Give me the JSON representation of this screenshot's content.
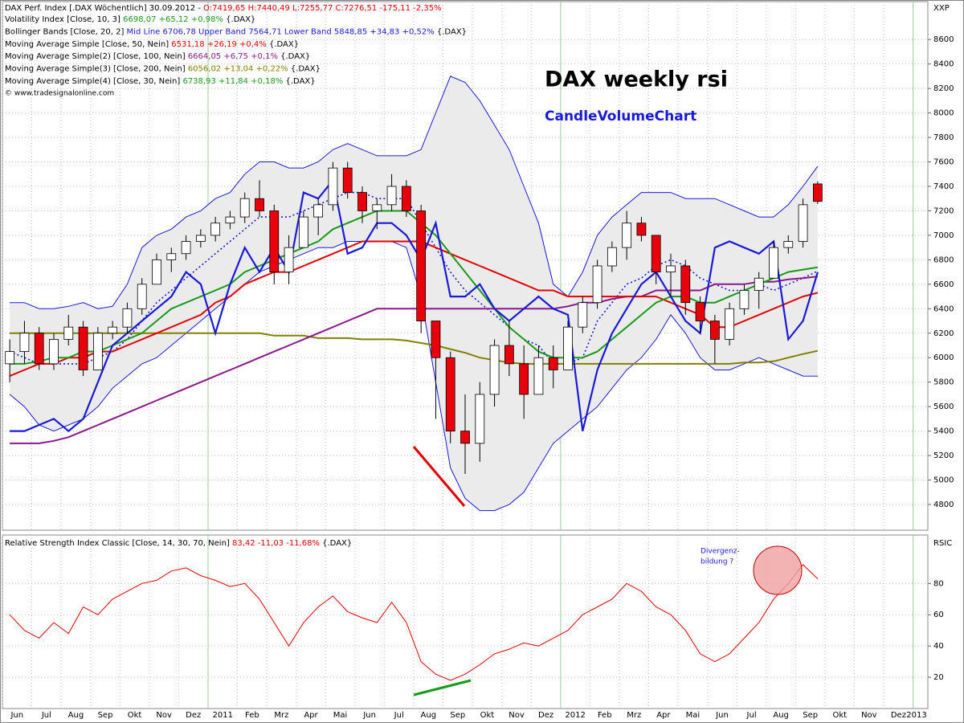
{
  "chart_data": [
    {
      "type": "candlestick",
      "header": "DAX Perf. Index [.DAX  Wöchentlich] 30.09.2012 - ",
      "header_values": "O:7419,65 H:7440,49 L:7255,77 C:7276,51 -175,11 -2,35%",
      "header_color": "#e00000",
      "copyright": "© www.tradesignalonline.com",
      "axis_name": "XXP",
      "title": "DAX weekly rsi",
      "subtitle": "CandleVolumeChart",
      "legend": [
        {
          "label": "Volatility Index [Close, 10, 3] ",
          "values": "6698,07 +65,12 +0,98% ",
          "suffix": "{.DAX}",
          "color": "#1a9a1a"
        },
        {
          "label": "Bollinger Bands [Close, 20, 2] ",
          "values": "Mid Line 6706,78 Upper Band 7564,71 Lower Band 5848,85 +34,83 +0,52% ",
          "suffix": "{.DAX}",
          "color": "#1a1ad6"
        },
        {
          "label": "Moving Average Simple [Close, 50, Nein] ",
          "values": "6531,18 +26,19 +0,4% ",
          "suffix": "{.DAX}",
          "color": "#e00000"
        },
        {
          "label": "Moving Average Simple(2) [Close, 100, Nein] ",
          "values": "6664,05 +6,75 +0,1% ",
          "suffix": "{.DAX}",
          "color": "#8a1a8a"
        },
        {
          "label": "Moving Average Simple(3) [Close, 200, Nein] ",
          "values": "6056,02 +13,04 +0,22% ",
          "suffix": "{.DAX}",
          "color": "#808000"
        },
        {
          "label": "Moving Average Simple(4) [Close, 30, Nein] ",
          "values": "6738,93 +11,84 +0,18% ",
          "suffix": "{.DAX}",
          "color": "#1a9a1a"
        }
      ],
      "categories": [
        "Jun",
        null,
        "Jul",
        null,
        "Aug",
        null,
        "Sep",
        null,
        "Okt",
        null,
        "Nov",
        null,
        "Dez",
        null,
        "2011",
        null,
        "Feb",
        null,
        "Mrz",
        null,
        "Apr",
        null,
        "Mai",
        null,
        "Jun",
        null,
        "Jul",
        null,
        "Aug",
        null,
        "Sep",
        null,
        "Okt",
        null,
        "Nov",
        null,
        "Dez",
        null,
        "2012",
        null,
        "Feb",
        null,
        "Mrz",
        null,
        "Apr",
        null,
        "Mai",
        null,
        "Jun",
        null,
        "Jul",
        null,
        "Aug",
        null,
        "Sep",
        null,
        "Okt",
        null,
        "Nov",
        null,
        "Dez",
        null,
        "2013"
      ],
      "open": [
        5950,
        6050,
        6200,
        5950,
        6150,
        6250,
        5900,
        6200,
        6250,
        6400,
        6600,
        6800,
        6850,
        6950,
        7000,
        7100,
        7150,
        7300,
        7200,
        6700,
        6900,
        7150,
        7250,
        7550,
        7350,
        7200,
        7250,
        7400,
        7200,
        6300,
        6000,
        5400,
        5300,
        5700,
        6100,
        5950,
        5700,
        6000,
        5900,
        6250,
        6450,
        6750,
        6900,
        7100,
        7000,
        6700,
        6750,
        6450,
        6300,
        6150,
        6400,
        6550,
        6650,
        6900,
        6950,
        7420,
        null,
        null,
        null,
        null,
        null,
        null,
        null
      ],
      "high": [
        6150,
        6300,
        6250,
        6200,
        6350,
        6300,
        6250,
        6300,
        6450,
        6650,
        6850,
        6900,
        7000,
        7050,
        7150,
        7200,
        7350,
        7450,
        7250,
        7000,
        7200,
        7300,
        7600,
        7600,
        7400,
        7300,
        7500,
        7450,
        7250,
        6300,
        6050,
        5700,
        5800,
        6150,
        6300,
        6100,
        6100,
        6100,
        6300,
        6500,
        6800,
        6950,
        7200,
        7150,
        7000,
        6850,
        6800,
        6500,
        6350,
        6450,
        6600,
        6700,
        6950,
        7000,
        7300,
        7440,
        null,
        null,
        null,
        null,
        null,
        null,
        null
      ],
      "low": [
        5800,
        5950,
        5900,
        5900,
        6100,
        5850,
        5900,
        6150,
        6200,
        6350,
        6600,
        6700,
        6800,
        6900,
        6950,
        7050,
        7100,
        7150,
        6600,
        6600,
        6900,
        7000,
        7200,
        7300,
        7100,
        7050,
        7200,
        7150,
        6200,
        5500,
        5300,
        5050,
        5150,
        5600,
        5850,
        5500,
        5700,
        5750,
        5900,
        6200,
        6400,
        6700,
        6800,
        6950,
        6600,
        6500,
        6350,
        6200,
        5950,
        6100,
        6350,
        6400,
        6650,
        6850,
        6900,
        7256,
        null,
        null,
        null,
        null,
        null,
        null,
        null
      ],
      "close": [
        6050,
        6200,
        5950,
        6150,
        6250,
        5900,
        6200,
        6250,
        6400,
        6600,
        6800,
        6850,
        6950,
        7000,
        7100,
        7150,
        7300,
        7200,
        6700,
        6900,
        7150,
        7250,
        7550,
        7350,
        7200,
        7250,
        7400,
        7200,
        6300,
        6000,
        5400,
        5300,
        5700,
        6100,
        5950,
        5700,
        6000,
        5900,
        6250,
        6450,
        6750,
        6900,
        7100,
        7000,
        6700,
        6750,
        6450,
        6300,
        6150,
        6400,
        6550,
        6650,
        6900,
        6950,
        7250,
        7277,
        null,
        null,
        null,
        null,
        null,
        null,
        null
      ],
      "up_color": "#ffffff",
      "down_color": "#e8000b",
      "band_fill": {
        "color": "#ebebeb",
        "series": [
          0,
          1
        ]
      },
      "series": [
        {
          "color": "#1a1ad6",
          "width": 1,
          "values": [
            6450,
            6450,
            6400,
            6400,
            6420,
            6450,
            6400,
            6420,
            6600,
            6900,
            7000,
            7050,
            7150,
            7200,
            7300,
            7350,
            7500,
            7600,
            7600,
            7550,
            7550,
            7600,
            7700,
            7750,
            7700,
            7650,
            7650,
            7650,
            7700,
            8000,
            8300,
            8250,
            8100,
            7900,
            7700,
            7400,
            7100,
            6600,
            6500,
            6700,
            7000,
            7150,
            7250,
            7350,
            7350,
            7350,
            7300,
            7300,
            7300,
            7250,
            7200,
            7150,
            7150,
            7250,
            7400,
            7565,
            null,
            null,
            null,
            null,
            null,
            null,
            null
          ]
        },
        {
          "color": "#1a1ad6",
          "width": 1,
          "values": [
            5700,
            5600,
            5450,
            5400,
            5450,
            5500,
            5600,
            5750,
            5850,
            5950,
            6000,
            6100,
            6200,
            6300,
            6400,
            6500,
            6600,
            6700,
            6750,
            6800,
            6850,
            6900,
            6900,
            6950,
            6950,
            6950,
            6950,
            6900,
            6500,
            5800,
            5100,
            4850,
            4750,
            4750,
            4800,
            4900,
            5100,
            5300,
            5400,
            5500,
            5600,
            5750,
            5900,
            6000,
            6150,
            6350,
            6200,
            6000,
            5900,
            5900,
            5950,
            6000,
            5950,
            5900,
            5850,
            5849,
            null,
            null,
            null,
            null,
            null,
            null,
            null
          ]
        },
        {
          "color": "#1a1ad6",
          "width": 1.6,
          "dash": true,
          "values": [
            6050,
            6000,
            5950,
            5950,
            5950,
            5950,
            6000,
            6050,
            6150,
            6300,
            6450,
            6550,
            6650,
            6750,
            6850,
            6950,
            7050,
            7150,
            7150,
            7150,
            7200,
            7250,
            7300,
            7350,
            7350,
            7300,
            7300,
            7300,
            7100,
            6900,
            6700,
            6550,
            6450,
            6350,
            6250,
            6150,
            6100,
            5950,
            5950,
            6000,
            6300,
            6450,
            6600,
            6650,
            6750,
            6800,
            6750,
            6650,
            6600,
            6550,
            6550,
            6600,
            6550,
            6600,
            6650,
            6707,
            null,
            null,
            null,
            null,
            null,
            null,
            null
          ]
        },
        {
          "color": "#808000",
          "width": 2,
          "values": [
            6200,
            6200,
            6200,
            6200,
            6200,
            6200,
            6200,
            6200,
            6200,
            6200,
            6200,
            6200,
            6200,
            6200,
            6200,
            6200,
            6200,
            6200,
            6180,
            6180,
            6180,
            6160,
            6160,
            6160,
            6150,
            6150,
            6150,
            6140,
            6120,
            6100,
            6070,
            6040,
            6000,
            5980,
            5960,
            5950,
            5950,
            5950,
            5950,
            5950,
            5950,
            5950,
            5950,
            5950,
            5950,
            5950,
            5950,
            5950,
            5950,
            5950,
            5960,
            5960,
            5970,
            6000,
            6030,
            6056,
            null,
            null,
            null,
            null,
            null,
            null,
            null
          ]
        },
        {
          "color": "#8a1a8a",
          "width": 2,
          "values": [
            5300,
            5300,
            5300,
            5320,
            5350,
            5400,
            5450,
            5500,
            5550,
            5600,
            5650,
            5700,
            5750,
            5800,
            5850,
            5900,
            5950,
            6000,
            6050,
            6100,
            6150,
            6200,
            6250,
            6300,
            6350,
            6400,
            6400,
            6400,
            6400,
            6400,
            6400,
            6400,
            6400,
            6400,
            6400,
            6400,
            6400,
            6400,
            6420,
            6450,
            6450,
            6480,
            6500,
            6500,
            6550,
            6550,
            6550,
            6550,
            6600,
            6600,
            6600,
            6620,
            6620,
            6640,
            6650,
            6664,
            null,
            null,
            null,
            null,
            null,
            null,
            null
          ]
        },
        {
          "color": "#e00000",
          "width": 2,
          "values": [
            5850,
            5900,
            5950,
            5950,
            6000,
            6000,
            6050,
            6050,
            6100,
            6150,
            6200,
            6250,
            6300,
            6350,
            6450,
            6500,
            6600,
            6650,
            6700,
            6700,
            6750,
            6800,
            6850,
            6900,
            6950,
            6950,
            6950,
            6950,
            6950,
            6900,
            6850,
            6800,
            6750,
            6700,
            6650,
            6600,
            6550,
            6550,
            6500,
            6500,
            6500,
            6500,
            6500,
            6500,
            6500,
            6450,
            6400,
            6350,
            6250,
            6250,
            6300,
            6350,
            6400,
            6450,
            6500,
            6531,
            null,
            null,
            null,
            null,
            null,
            null,
            null
          ]
        },
        {
          "color": "#1a9a1a",
          "width": 2,
          "values": [
            5950,
            5950,
            5970,
            6000,
            6000,
            6050,
            6050,
            6100,
            6150,
            6200,
            6300,
            6400,
            6450,
            6500,
            6550,
            6600,
            6700,
            6750,
            6800,
            6850,
            6900,
            6950,
            7050,
            7100,
            7150,
            7200,
            7200,
            7200,
            7100,
            7000,
            6850,
            6700,
            6550,
            6400,
            6250,
            6150,
            6050,
            6000,
            6000,
            6000,
            6050,
            6150,
            6250,
            6350,
            6450,
            6500,
            6500,
            6450,
            6450,
            6500,
            6550,
            6600,
            6650,
            6700,
            6720,
            6739,
            null,
            null,
            null,
            null,
            null,
            null,
            null
          ]
        },
        {
          "color": "#1a1ad6",
          "width": 2.2,
          "values": [
            5400,
            5400,
            5450,
            5500,
            5400,
            5500,
            5800,
            6100,
            6200,
            6300,
            6400,
            6500,
            6700,
            6600,
            6200,
            6600,
            6900,
            6700,
            6900,
            6700,
            7350,
            7300,
            7450,
            6850,
            6900,
            7100,
            7100,
            7000,
            6800,
            7100,
            6500,
            6500,
            6600,
            6400,
            6300,
            6400,
            6500,
            6400,
            6350,
            5400,
            5900,
            6200,
            6400,
            6600,
            6700,
            6500,
            6300,
            6200,
            6900,
            6950,
            6900,
            6850,
            6950,
            6150,
            6300,
            6699,
            null,
            null,
            null,
            null,
            null,
            null,
            null
          ]
        }
      ],
      "ylim": [
        4590,
        8910
      ],
      "yticks": [
        4800,
        5000,
        5200,
        5400,
        5600,
        5800,
        6000,
        6200,
        6400,
        6600,
        6800,
        7000,
        7200,
        7400,
        7600,
        7800,
        8000,
        8200,
        8400,
        8600
      ],
      "grid": true
    },
    {
      "type": "line",
      "legend_label": "Relative Strength Index Classic [Close, 14, 30, 70, Nein] ",
      "legend_values": "83,42 -11,03 -11,68% ",
      "legend_suffix": "{.DAX}",
      "axis_name": "RSIC",
      "annotation": [
        "Divergenz-",
        "bildung ?"
      ],
      "color": "#e00000",
      "values": [
        60,
        50,
        45,
        55,
        48,
        65,
        60,
        70,
        75,
        80,
        82,
        88,
        90,
        85,
        82,
        78,
        80,
        70,
        55,
        40,
        55,
        65,
        72,
        62,
        58,
        55,
        68,
        55,
        30,
        22,
        18,
        22,
        28,
        35,
        38,
        42,
        40,
        45,
        50,
        60,
        65,
        70,
        80,
        75,
        65,
        60,
        50,
        35,
        30,
        35,
        45,
        55,
        70,
        80,
        92,
        83,
        null,
        null,
        null,
        null,
        null,
        null,
        null
      ],
      "ylim": [
        0,
        111
      ],
      "yticks": [
        20,
        40,
        60,
        80
      ],
      "grid": true
    }
  ]
}
